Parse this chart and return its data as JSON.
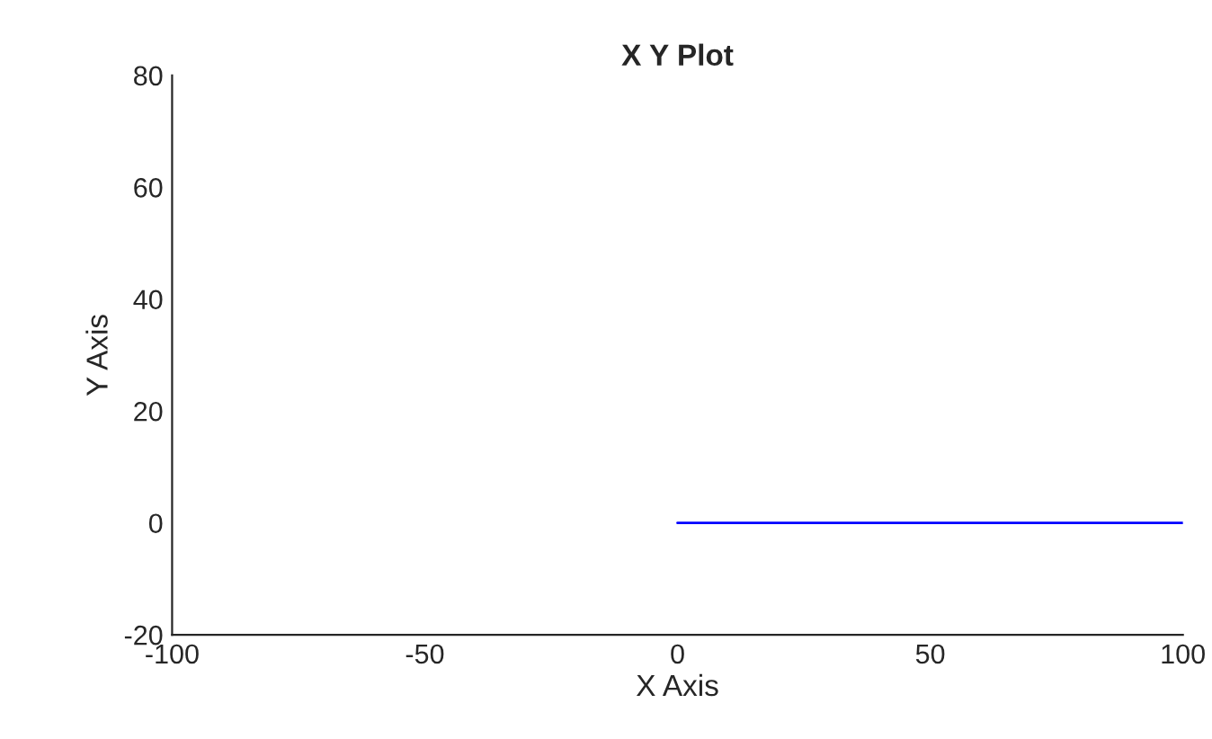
{
  "chart_data": {
    "type": "line",
    "title": "X Y Plot",
    "xlabel": "X Axis",
    "ylabel": "Y Axis",
    "x": [
      0,
      100
    ],
    "series": [
      {
        "color": "#0000ff",
        "values": [
          0,
          0
        ]
      }
    ],
    "xlim": [
      -100,
      100
    ],
    "xticks": [
      -100,
      -50,
      0,
      50,
      100
    ],
    "ylim": [
      -20,
      80
    ],
    "yticks": [
      -20,
      0,
      20,
      40,
      60,
      80
    ],
    "grid": false,
    "legend": false
  }
}
